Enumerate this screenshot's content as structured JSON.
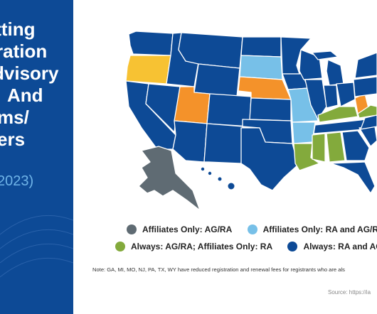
{
  "left_panel": {
    "title_lines": [
      "itting",
      "ration",
      "dvisory",
      "And",
      "ms/",
      "ers"
    ],
    "year": "2023)"
  },
  "map": {
    "colors": {
      "ag_ra": "#5f6b73",
      "ra_and_agra": "#77c0e8",
      "orange": "#f4922a",
      "always_agra_aff_ra": "#83aa3c",
      "always_ra_agra": "#0d4a96",
      "yellow": "#f7c233"
    }
  },
  "legend": {
    "items": [
      {
        "label": "Affiliates Only: AG/RA",
        "color": "#5f6b73"
      },
      {
        "label": "Affiliates Only: RA and AG/RA",
        "color": "#77c0e8"
      },
      {
        "label": "",
        "color": "#f4922a"
      },
      {
        "label": "Always: AG/RA; Affiliates Only: RA",
        "color": "#83aa3c"
      },
      {
        "label": "Always: RA and AG/RA",
        "color": "#0d4a96"
      },
      {
        "label": "",
        "color": "#f7c233"
      }
    ]
  },
  "note": "Note: GA, MI, MO, NJ, PA, TX, WY have reduced registration and renewal fees for registrants who are als",
  "source": "Source: https://ia"
}
